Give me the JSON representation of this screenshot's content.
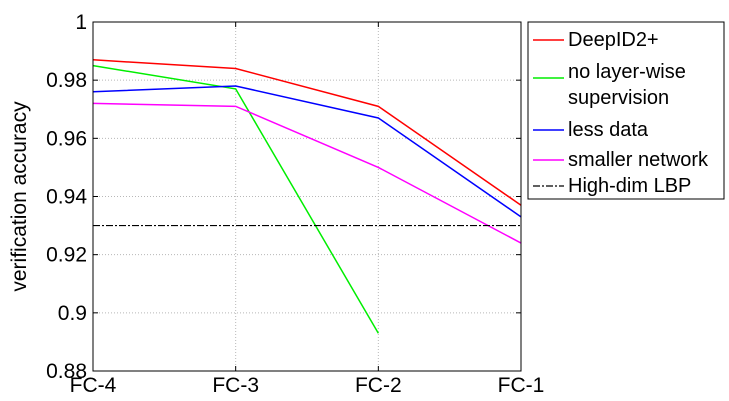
{
  "chart_data": {
    "type": "line",
    "title": "",
    "xlabel": "",
    "ylabel": "verification accuracy",
    "categories": [
      "FC-4",
      "FC-3",
      "FC-2",
      "FC-1"
    ],
    "ylim": [
      0.88,
      1.0
    ],
    "yticks": [
      0.88,
      0.9,
      0.92,
      0.94,
      0.96,
      0.98,
      1.0
    ],
    "ytick_labels": [
      "0.88",
      "0.9",
      "0.92",
      "0.94",
      "0.96",
      "0.98",
      "1"
    ],
    "grid": "dotted",
    "legend_position": "right, outside",
    "series": [
      {
        "name": "DeepID2+",
        "color": "#ff0000",
        "style": "solid",
        "values": [
          0.987,
          0.984,
          0.971,
          0.937
        ]
      },
      {
        "name": "no layer-wise supervision",
        "name_lines": [
          "no layer-wise",
          "supervision"
        ],
        "color": "#00ee00",
        "style": "solid",
        "values": [
          0.985,
          0.977,
          0.893,
          null
        ]
      },
      {
        "name": "less data",
        "color": "#0000ff",
        "style": "solid",
        "values": [
          0.976,
          0.978,
          0.967,
          0.933
        ]
      },
      {
        "name": "smaller network",
        "color": "#ff00ff",
        "style": "solid",
        "values": [
          0.972,
          0.971,
          0.95,
          0.924
        ]
      },
      {
        "name": "High-dim LBP",
        "color": "#000000",
        "style": "dashdot",
        "values": [
          0.93,
          0.93,
          0.93,
          0.93
        ]
      }
    ]
  }
}
